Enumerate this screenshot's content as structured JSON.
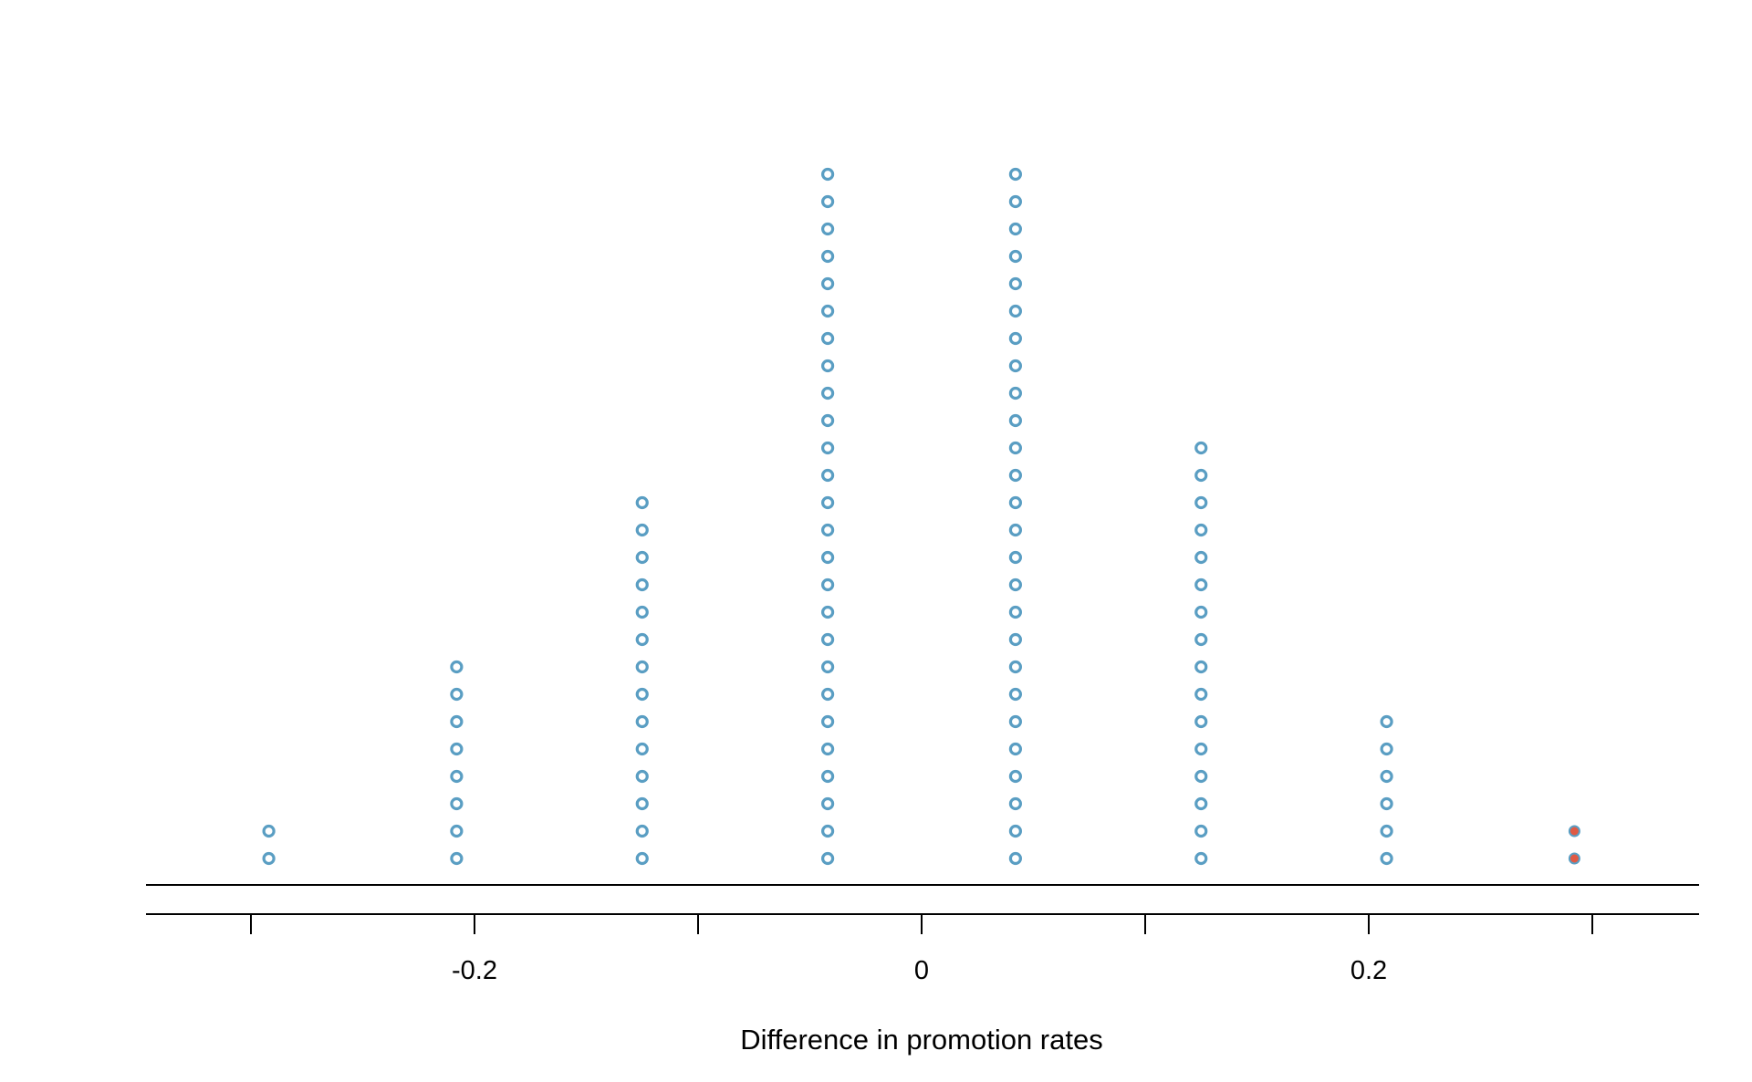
{
  "chart_data": {
    "type": "scatter",
    "subtype": "dot-plot",
    "title": "",
    "xlabel": "Difference in promotion rates",
    "ylabel": "",
    "xlim": [
      -0.3,
      0.3
    ],
    "x_tick_labels": [
      {
        "value": -0.2,
        "label": "-0.2"
      },
      {
        "value": 0,
        "label": "0"
      },
      {
        "value": 0.2,
        "label": "0.2"
      }
    ],
    "x_ticks_unlabeled": [
      -0.3,
      -0.1,
      0.1,
      0.3
    ],
    "grid": false,
    "legend": "none",
    "colors": {
      "default": "#5a9ec3",
      "highlight": "#e05a44"
    },
    "columns": [
      {
        "x": -0.292,
        "count": 2,
        "style": "hollow"
      },
      {
        "x": -0.208,
        "count": 8,
        "style": "hollow"
      },
      {
        "x": -0.125,
        "count": 14,
        "style": "hollow"
      },
      {
        "x": -0.042,
        "count": 26,
        "style": "hollow"
      },
      {
        "x": 0.042,
        "count": 26,
        "style": "hollow"
      },
      {
        "x": 0.125,
        "count": 16,
        "style": "hollow"
      },
      {
        "x": 0.208,
        "count": 6,
        "style": "hollow"
      },
      {
        "x": 0.292,
        "count": 2,
        "style": "filled-highlight"
      }
    ]
  }
}
